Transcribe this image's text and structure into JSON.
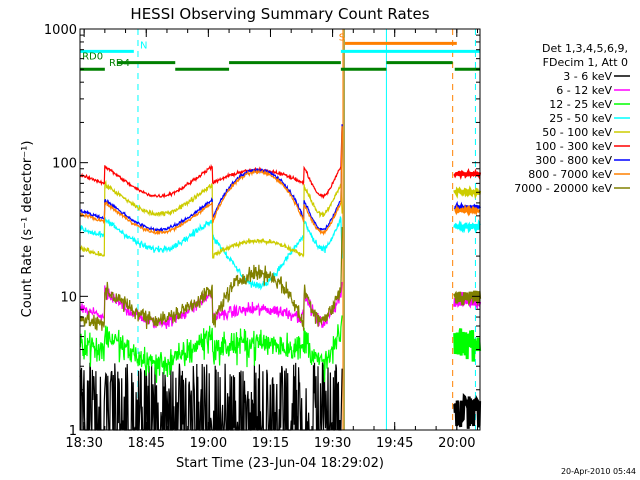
{
  "chart_data": {
    "type": "line",
    "title": "HESSI Observing Summary Count Rates",
    "xlabel": "Start Time (23-Jun-04 18:29:02)",
    "ylabel": "Count Rate (s⁻¹ detector⁻¹)",
    "x_tick_labels": [
      "18:30",
      "18:45",
      "19:00",
      "19:15",
      "19:30",
      "19:45",
      "20:00"
    ],
    "x_tick_minutes": [
      0,
      15,
      30,
      45,
      60,
      75,
      90
    ],
    "xlim_minutes": [
      -1,
      95.6
    ],
    "y_scale": "log",
    "ylim": [
      1,
      1000
    ],
    "y_tick_labels": [
      "1",
      "10",
      "100",
      "1000"
    ],
    "y_tick_values": [
      1,
      10,
      100,
      1000
    ],
    "legend_position": "right",
    "legend_header": [
      "Det 1,3,4,5,6,9,",
      "FDecim 1, Att 0"
    ],
    "footer_date": "20-Apr-2010 05:44",
    "gap_start": 62,
    "resume_at": 89.5,
    "series": [
      {
        "name": "3 - 6 keV",
        "color": "#000000",
        "day": 1.2,
        "night": 1.0,
        "peak": 1.8,
        "noise": 0.3,
        "sparse": true
      },
      {
        "name": "6 - 12 keV",
        "color": "#ff00ff",
        "day": 8.5,
        "night": 7.0,
        "peak": 8.0,
        "noise": 0.08,
        "sparse": false
      },
      {
        "name": "12 - 25 keV",
        "color": "#00ff00",
        "day": 4.2,
        "night": 4.0,
        "peak": 4.5,
        "noise": 0.18,
        "sparse": false
      },
      {
        "name": "25 - 50 keV",
        "color": "#00ffff",
        "day": 30,
        "night": 28,
        "peak": 12,
        "noise": 0.04,
        "sparse": false
      },
      {
        "name": "50 - 100 keV",
        "color": "#cccc00",
        "day": 55,
        "night": 20,
        "peak": 26,
        "noise": 0.03,
        "sparse": false
      },
      {
        "name": "100 - 300 keV",
        "color": "#ff0000",
        "day": 75,
        "night": 70,
        "peak": 88,
        "noise": 0.02,
        "sparse": false
      },
      {
        "name": "300 - 800 keV",
        "color": "#0000ff",
        "day": 42,
        "night": 38,
        "peak": 88,
        "noise": 0.02,
        "sparse": false
      },
      {
        "name": "800 - 7000 keV",
        "color": "#ff8000",
        "day": 40,
        "night": 36,
        "peak": 85,
        "noise": 0.02,
        "sparse": false
      },
      {
        "name": "7000 - 20000 keV",
        "color": "#808000",
        "day": 9,
        "night": 6,
        "peak": 15,
        "noise": 0.1,
        "sparse": false
      }
    ],
    "flags": [
      {
        "label": "N",
        "color": "#00ffff",
        "y": 680,
        "segments": [
          [
            -1,
            12
          ],
          [
            62,
            95.6
          ]
        ],
        "label_at": 13.5
      },
      {
        "label": "RD0",
        "color": "#008000",
        "y": 560,
        "segments": [
          [
            8,
            22
          ],
          [
            35,
            62
          ],
          [
            73,
            89
          ]
        ],
        "label_at": -0.5
      },
      {
        "label": "RD4",
        "color": "#008000",
        "y": 500,
        "segments": [
          [
            -1,
            5
          ],
          [
            22,
            35
          ],
          [
            62,
            73
          ],
          [
            89.5,
            95.6
          ]
        ],
        "label_at": 6
      },
      {
        "label": "S",
        "color": "#ff8000",
        "y": 780,
        "segments": [
          [
            63,
            90
          ]
        ],
        "label_at": 61.5
      }
    ],
    "markers": [
      {
        "x": -1,
        "color": "#00ffff",
        "style": "solid"
      },
      {
        "x": 13,
        "color": "#00ffff",
        "style": "dashed"
      },
      {
        "x": 62.5,
        "color": "#ff8000",
        "style": "solid"
      },
      {
        "x": 62.8,
        "color": "#808000",
        "style": "solid"
      },
      {
        "x": 73,
        "color": "#00ffff",
        "style": "solid"
      },
      {
        "x": 89,
        "color": "#ff8000",
        "style": "dashed"
      },
      {
        "x": 94.5,
        "color": "#00ffff",
        "style": "dashed"
      }
    ]
  }
}
